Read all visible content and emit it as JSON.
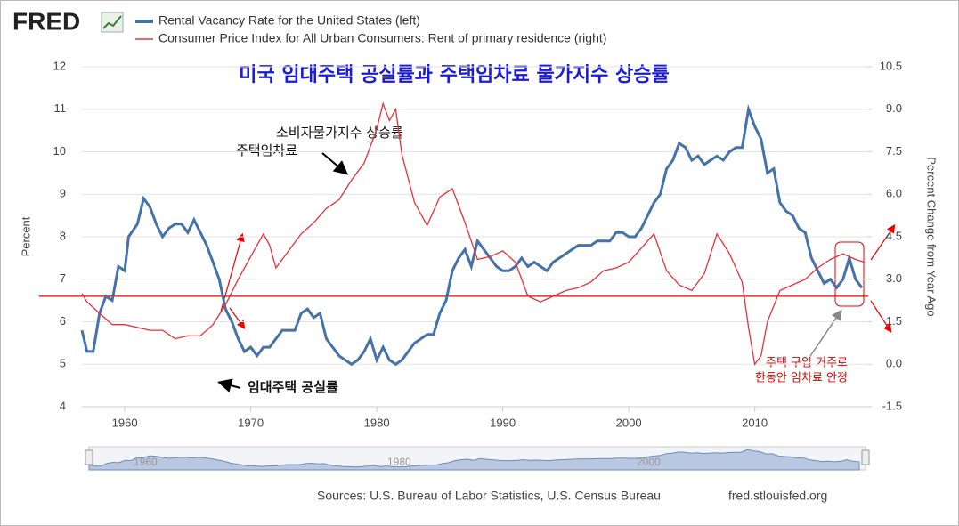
{
  "chart_data": {
    "type": "line",
    "logo": "FRED",
    "title": "미국 임대주택 공실률과 주택임차료 물가지수 상승률",
    "ylabel": "Percent",
    "y2label": "Percent Change from Year Ago",
    "xlim": [
      1956.6,
      2019.0
    ],
    "xticks": [
      1960,
      1970,
      1980,
      1990,
      2000,
      2010
    ],
    "ylim": [
      4,
      12
    ],
    "yticks": [
      4,
      5,
      6,
      7,
      8,
      9,
      10,
      11,
      12
    ],
    "y2lim": [
      -1.5,
      10.5
    ],
    "y2ticks": [
      -1.5,
      {
        "value": 0,
        "label": "0.0"
      },
      1.5,
      {
        "value": 3,
        "label": "3.0"
      },
      4.5,
      {
        "value": 6,
        "label": "6.0"
      },
      7.5,
      {
        "value": 9,
        "label": "9.0"
      },
      10.5
    ],
    "hline": 6.6,
    "grid": true,
    "legend": "top-left",
    "series": [
      {
        "name": "Rental Vacancy Rate for the United States (left)",
        "color": "#4572a7",
        "axis": "y",
        "x": [
          1956.6,
          1957,
          1957.5,
          1958,
          1958.5,
          1959,
          1959.5,
          1960,
          1960.3,
          1961,
          1961.5,
          1962,
          1962.5,
          1963,
          1963.5,
          1964,
          1964.5,
          1965,
          1965.5,
          1966,
          1966.5,
          1967,
          1967.5,
          1968,
          1968.5,
          1969,
          1969.5,
          1970,
          1970.5,
          1971,
          1971.5,
          1972,
          1972.5,
          1973,
          1973.5,
          1974,
          1974.5,
          1975,
          1975.5,
          1976,
          1976.5,
          1977,
          1977.5,
          1978,
          1978.5,
          1979,
          1979.5,
          1980,
          1980.5,
          1981,
          1981.5,
          1982,
          1982.5,
          1983,
          1983.5,
          1984,
          1984.5,
          1985,
          1985.5,
          1986,
          1986.5,
          1987,
          1987.5,
          1988,
          1988.5,
          1989,
          1989.5,
          1990,
          1990.5,
          1991,
          1991.5,
          1992,
          1992.5,
          1993,
          1993.5,
          1994,
          1994.5,
          1995,
          1995.5,
          1996,
          1996.5,
          1997,
          1997.5,
          1998,
          1998.5,
          1999,
          1999.5,
          2000,
          2000.5,
          2001,
          2001.5,
          2002,
          2002.5,
          2003,
          2003.5,
          2004,
          2004.5,
          2005,
          2005.5,
          2006,
          2006.5,
          2007,
          2007.5,
          2008,
          2008.5,
          2009,
          2009.5,
          2010,
          2010.5,
          2011,
          2011.5,
          2012,
          2012.5,
          2013,
          2013.5,
          2014,
          2014.5,
          2015,
          2015.5,
          2016,
          2016.5,
          2017,
          2017.5,
          2018,
          2018.5
        ],
        "values": [
          5.8,
          5.3,
          5.3,
          6.2,
          6.6,
          6.5,
          7.3,
          7.2,
          8.0,
          8.3,
          8.9,
          8.7,
          8.3,
          8.0,
          8.2,
          8.3,
          8.3,
          8.1,
          8.4,
          8.1,
          7.8,
          7.4,
          7.0,
          6.3,
          6.0,
          5.6,
          5.3,
          5.4,
          5.2,
          5.4,
          5.4,
          5.6,
          5.8,
          5.8,
          5.8,
          6.2,
          6.3,
          6.1,
          6.2,
          5.6,
          5.4,
          5.2,
          5.1,
          5.0,
          5.1,
          5.3,
          5.6,
          5.1,
          5.4,
          5.1,
          5.0,
          5.1,
          5.3,
          5.5,
          5.6,
          5.7,
          5.7,
          6.2,
          6.5,
          7.2,
          7.5,
          7.7,
          7.3,
          7.9,
          7.7,
          7.5,
          7.3,
          7.2,
          7.2,
          7.3,
          7.5,
          7.3,
          7.4,
          7.3,
          7.2,
          7.4,
          7.5,
          7.6,
          7.7,
          7.8,
          7.8,
          7.8,
          7.9,
          7.9,
          7.9,
          8.1,
          8.1,
          8.0,
          8.0,
          8.2,
          8.5,
          8.8,
          9.0,
          9.6,
          9.8,
          10.2,
          10.1,
          9.8,
          9.9,
          9.7,
          9.8,
          9.9,
          9.8,
          10.0,
          10.1,
          10.1,
          11.0,
          10.6,
          10.3,
          9.5,
          9.6,
          8.8,
          8.6,
          8.5,
          8.2,
          8.1,
          7.5,
          7.2,
          6.9,
          7.0,
          6.8,
          7.0,
          7.5,
          7.0,
          6.8
        ]
      },
      {
        "name": "Consumer Price Index for All Urban Consumers: Rent of primary residence (right)",
        "color": "#e8303a",
        "axis": "y2",
        "x": [
          1956.6,
          1957,
          1958,
          1959,
          1960,
          1961,
          1962,
          1963,
          1964,
          1965,
          1966,
          1967,
          1968,
          1969,
          1970,
          1971,
          1971.5,
          1972,
          1973,
          1974,
          1975,
          1976,
          1977,
          1978,
          1979,
          1980,
          1980.5,
          1981,
          1981.5,
          1982,
          1983,
          1984,
          1985,
          1986,
          1987,
          1988,
          1989,
          1990,
          1991,
          1992,
          1993,
          1994,
          1995,
          1996,
          1997,
          1998,
          1999,
          2000,
          2001,
          2002,
          2003,
          2004,
          2005,
          2006,
          2007,
          2008,
          2009,
          2009.5,
          2010,
          2010.5,
          2011,
          2012,
          2013,
          2014,
          2015,
          2016,
          2017,
          2018,
          2018.7
        ],
        "values": [
          2.5,
          2.2,
          1.8,
          1.4,
          1.4,
          1.3,
          1.2,
          1.2,
          0.9,
          1.0,
          1.0,
          1.4,
          2.1,
          3.0,
          3.8,
          4.6,
          4.2,
          3.4,
          4.0,
          4.6,
          5.0,
          5.5,
          5.8,
          6.5,
          7.1,
          8.3,
          9.2,
          8.6,
          9.0,
          7.4,
          5.7,
          4.9,
          5.9,
          6.2,
          5.0,
          3.7,
          3.8,
          4.0,
          3.6,
          2.4,
          2.2,
          2.4,
          2.6,
          2.7,
          2.9,
          3.3,
          3.4,
          3.6,
          4.1,
          4.6,
          3.3,
          2.8,
          2.6,
          3.2,
          4.6,
          3.9,
          2.9,
          1.3,
          0.0,
          0.3,
          1.5,
          2.6,
          2.8,
          3.0,
          3.4,
          3.7,
          3.9,
          3.7,
          3.6
        ]
      }
    ],
    "annotations": [
      "소비자물가지수 상승률",
      "주택임차료",
      "임대주택 공실률",
      "주택 구입 거주로",
      "한동안 임차료 안정"
    ],
    "navigator_labels": [
      "1960",
      "1980",
      "2000"
    ],
    "sources": "Sources: U.S. Bureau of Labor Statistics, U.S. Census Bureau",
    "site": "fred.stlouisfed.org"
  }
}
